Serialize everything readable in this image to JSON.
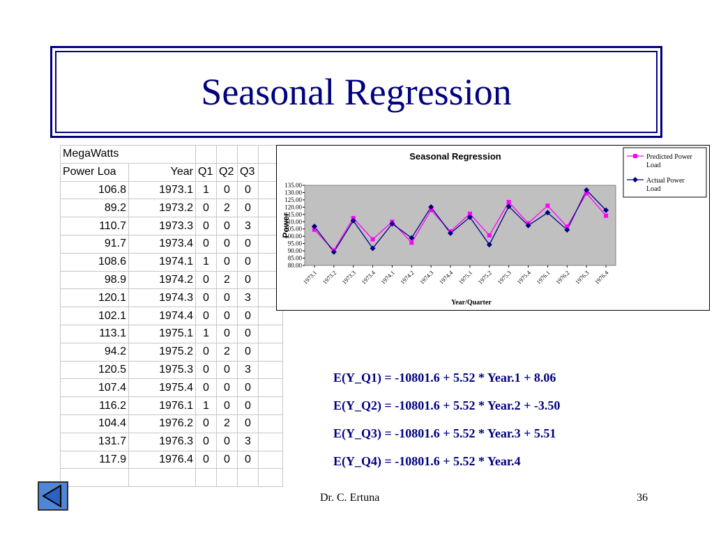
{
  "slide": {
    "title": "Seasonal Regression",
    "footer_author": "Dr. C. Ertuna",
    "page_number": "36"
  },
  "table": {
    "title_row": "MegaWatts",
    "headers": [
      "Power Loa",
      "Year",
      "Q1",
      "Q2",
      "Q3"
    ],
    "rows": [
      [
        "106.8",
        "1973.1",
        "1",
        "0",
        "0"
      ],
      [
        "89.2",
        "1973.2",
        "0",
        "2",
        "0"
      ],
      [
        "110.7",
        "1973.3",
        "0",
        "0",
        "3"
      ],
      [
        "91.7",
        "1973.4",
        "0",
        "0",
        "0"
      ],
      [
        "108.6",
        "1974.1",
        "1",
        "0",
        "0"
      ],
      [
        "98.9",
        "1974.2",
        "0",
        "2",
        "0"
      ],
      [
        "120.1",
        "1974.3",
        "0",
        "0",
        "3"
      ],
      [
        "102.1",
        "1974.4",
        "0",
        "0",
        "0"
      ],
      [
        "113.1",
        "1975.1",
        "1",
        "0",
        "0"
      ],
      [
        "94.2",
        "1975.2",
        "0",
        "2",
        "0"
      ],
      [
        "120.5",
        "1975.3",
        "0",
        "0",
        "3"
      ],
      [
        "107.4",
        "1975.4",
        "0",
        "0",
        "0"
      ],
      [
        "116.2",
        "1976.1",
        "1",
        "0",
        "0"
      ],
      [
        "104.4",
        "1976.2",
        "0",
        "2",
        "0"
      ],
      [
        "131.7",
        "1976.3",
        "0",
        "0",
        "3"
      ],
      [
        "117.9",
        "1976.4",
        "0",
        "0",
        "0"
      ]
    ]
  },
  "equations": [
    "E(Y_Q1) = -10801.6 + 5.52 * Year.1 + 8.06",
    "E(Y_Q2) = -10801.6 + 5.52 * Year.2 + -3.50",
    "E(Y_Q3) = -10801.6 + 5.52 * Year.3 + 5.51",
    "E(Y_Q4) = -10801.6 + 5.52 * Year.4"
  ],
  "icons": {
    "nav": "back-arrow-icon"
  },
  "chart_data": {
    "type": "line",
    "title": "Seasonal Regression",
    "xlabel": "Year/Quarter",
    "ylabel": "Power",
    "ylim": [
      80,
      135
    ],
    "yticks": [
      "80.00",
      "85.00",
      "90.00",
      "95.00",
      "100.00",
      "105.00",
      "110.00",
      "115.00",
      "120.00",
      "125.00",
      "130.00",
      "135.00"
    ],
    "categories": [
      "1973.1",
      "1973.2",
      "1973.3",
      "1973.4",
      "1974.1",
      "1974.2",
      "1974.3",
      "1974.4",
      "1975.1",
      "1975.2",
      "1975.3",
      "1975.4",
      "1976.1",
      "1976.2",
      "1976.3",
      "1976.4"
    ],
    "series": [
      {
        "name": "Predicted Power Load",
        "color": "#ff00ff",
        "marker": "square",
        "values": [
          104.5,
          90.3,
          112.5,
          97.9,
          110.0,
          95.6,
          118.0,
          103.3,
          115.5,
          100.6,
          123.5,
          108.9,
          121.0,
          106.6,
          129.5,
          114.1
        ]
      },
      {
        "name": "Actual Power Load",
        "color": "#000080",
        "marker": "diamond",
        "values": [
          106.8,
          89.2,
          110.7,
          91.7,
          108.6,
          98.9,
          120.1,
          102.1,
          113.1,
          94.2,
          120.5,
          107.4,
          116.2,
          104.4,
          131.7,
          117.9
        ]
      }
    ],
    "plot_background": "#c0c0c0",
    "legend_position": "right",
    "grid": false
  }
}
